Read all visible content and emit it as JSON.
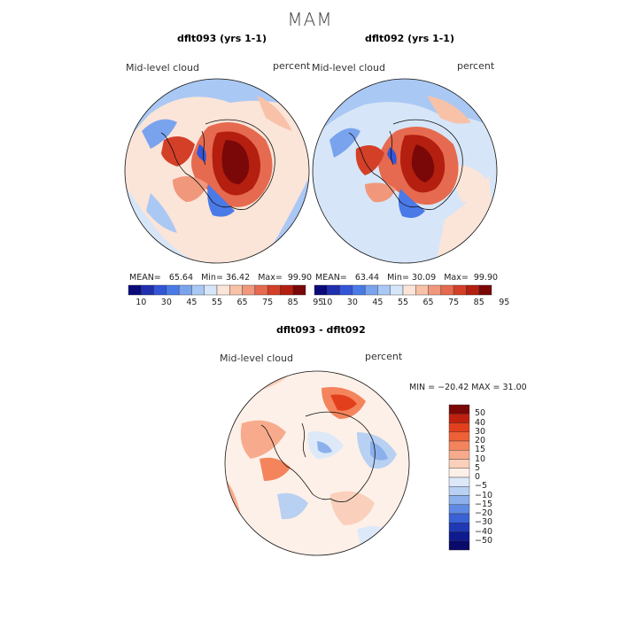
{
  "title": "MAM",
  "panels": [
    {
      "title": "dflt093 (yrs 1-1)",
      "variable": "Mid-level cloud",
      "units": "percent",
      "stats": {
        "mean_label": "MEAN=",
        "mean": "65.64",
        "min_label": "Min=",
        "min": "36.42",
        "max_label": "Max=",
        "max": "99.90"
      }
    },
    {
      "title": "dflt092 (yrs 1-1)",
      "variable": "Mid-level cloud",
      "units": "percent",
      "stats": {
        "mean_label": "MEAN=",
        "mean": "63.44",
        "min_label": "Min=",
        "min": "30.09",
        "max_label": "Max=",
        "max": "99.90"
      }
    }
  ],
  "abs_colorbar": {
    "colors": [
      "#0a0a7a",
      "#1f2fb0",
      "#3355d8",
      "#4a7ae8",
      "#7aa3ee",
      "#aac8f4",
      "#d6e6f8",
      "#fbe4d8",
      "#f7c2a8",
      "#f0977c",
      "#e66a4f",
      "#d43f28",
      "#b41f10",
      "#7a0808"
    ],
    "tick_labels": [
      "10",
      "30",
      "45",
      "55",
      "65",
      "75",
      "85",
      "95"
    ]
  },
  "diff_panel": {
    "title": "dflt093 - dflt092",
    "variable": "Mid-level cloud",
    "units": "percent",
    "min_max": "MIN = −20.42 MAX =  31.00"
  },
  "diff_colorbar": {
    "colors": [
      "#7a0808",
      "#c0200e",
      "#e2401c",
      "#ee6036",
      "#f4845c",
      "#f7ab8c",
      "#fad0bc",
      "#fdf0e8",
      "#dde9f8",
      "#b8d0f2",
      "#8cb0ec",
      "#5e8ae4",
      "#3a62d6",
      "#1f38b4",
      "#0d1a90",
      "#0a0a6a"
    ],
    "tick_labels": [
      "50",
      "40",
      "30",
      "20",
      "15",
      "10",
      "5",
      "0",
      "−5",
      "−10",
      "−15",
      "−20",
      "−30",
      "−40",
      "−50"
    ]
  }
}
